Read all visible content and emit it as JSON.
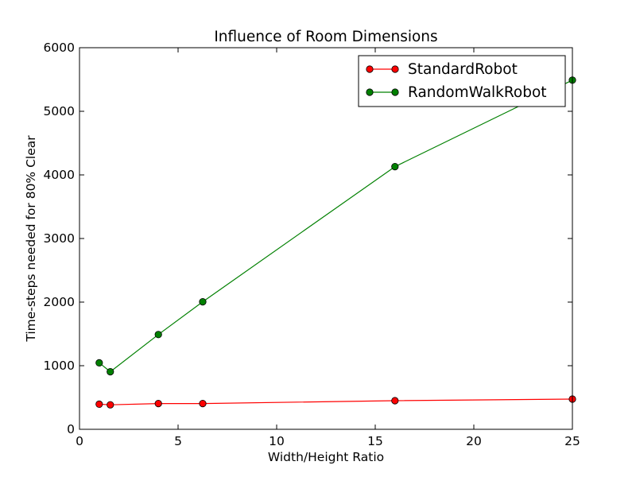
{
  "chart_data": {
    "type": "line",
    "title": "Influence of Room Dimensions",
    "xlabel": "Width/Height Ratio",
    "ylabel": "Time-steps needed for 80% Clear",
    "xlim": [
      0,
      25
    ],
    "ylim": [
      0,
      6000
    ],
    "xticks": [
      0,
      5,
      10,
      15,
      20,
      25
    ],
    "yticks": [
      0,
      1000,
      2000,
      3000,
      4000,
      5000,
      6000
    ],
    "xtick_labels": [
      "0",
      "5",
      "10",
      "15",
      "20",
      "25"
    ],
    "ytick_labels": [
      "0",
      "1000",
      "2000",
      "3000",
      "4000",
      "5000",
      "6000"
    ],
    "grid": false,
    "legend_position": "top-right",
    "series": [
      {
        "name": "StandardRobot",
        "color": "#ff0000",
        "x": [
          1,
          1.5625,
          4,
          6.25,
          16,
          25
        ],
        "y": [
          395,
          385,
          405,
          405,
          450,
          475
        ]
      },
      {
        "name": "RandomWalkRobot",
        "color": "#008000",
        "x": [
          1,
          1.5625,
          4,
          6.25,
          16,
          25
        ],
        "y": [
          1045,
          905,
          1490,
          2005,
          4130,
          5490
        ]
      }
    ]
  }
}
